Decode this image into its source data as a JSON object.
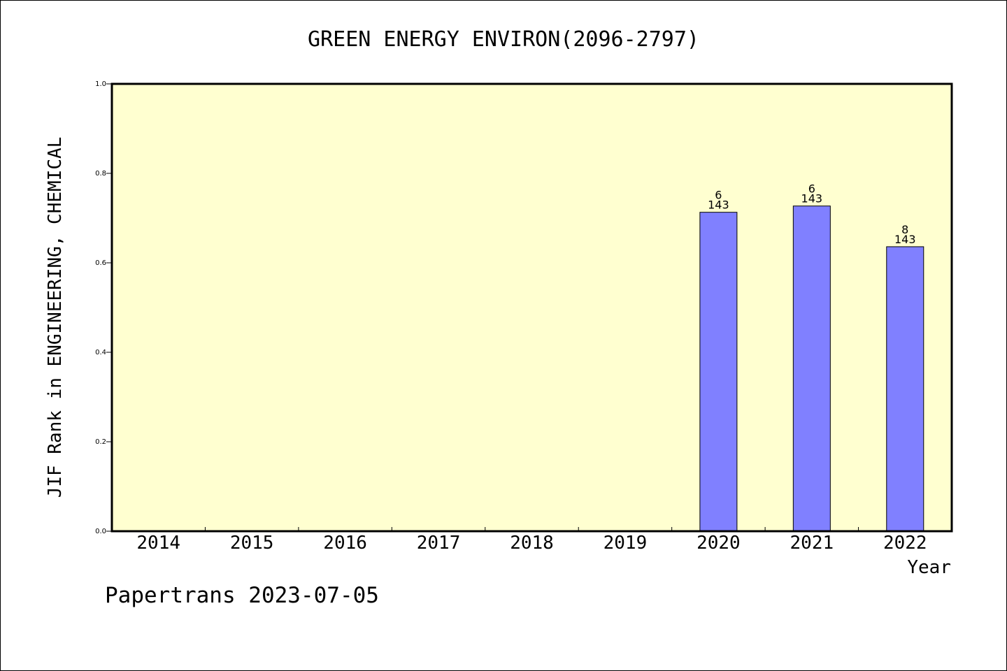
{
  "chart_data": {
    "type": "bar",
    "title": "GREEN ENERGY ENVIRON(2096-2797)",
    "xlabel": "Year",
    "ylabel": "JIF Rank in ENGINEERING, CHEMICAL",
    "categories": [
      "2014",
      "2015",
      "2016",
      "2017",
      "2018",
      "2019",
      "2020",
      "2021",
      "2022"
    ],
    "series": [
      {
        "values": [
          null,
          null,
          null,
          null,
          null,
          null,
          0.713,
          0.727,
          0.636
        ],
        "ranks": [
          "",
          "",
          "",
          "",
          "",
          "",
          "6",
          "6",
          "8"
        ],
        "totals": [
          "",
          "",
          "",
          "",
          "",
          "",
          "143",
          "143",
          "143"
        ]
      }
    ],
    "ylim": [
      0,
      1.0
    ],
    "yticks": [
      "0.0",
      "0.2",
      "0.4",
      "0.6",
      "0.8",
      "1.0"
    ],
    "grid": false,
    "colors": {
      "plot_background": "#ffffd0",
      "bar_fill": "#8080ff",
      "axis": "#000000"
    }
  },
  "footer": {
    "text": "Papertrans 2023-07-05"
  }
}
